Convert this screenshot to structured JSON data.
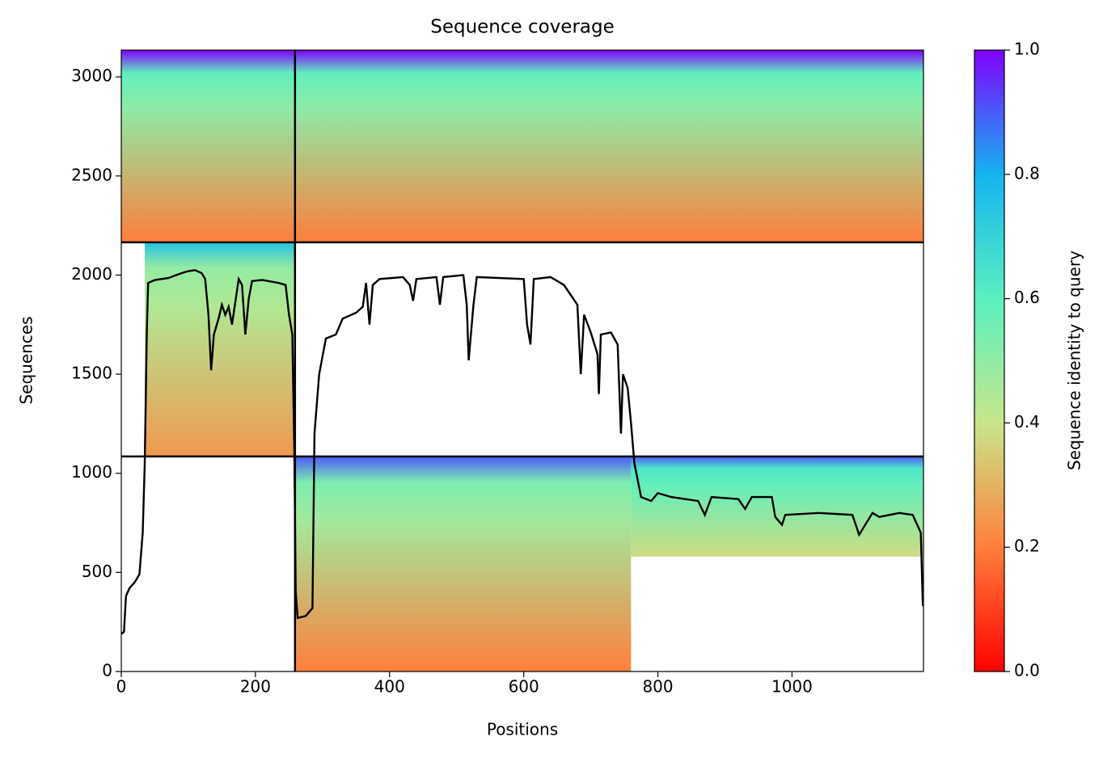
{
  "chart_data": {
    "type": "coverage",
    "title": "Sequence coverage",
    "xlabel": "Positions",
    "ylabel": "Sequences",
    "colorbar_label": "Sequence identity to query",
    "xlim": [
      0,
      1196
    ],
    "ylim": [
      0,
      3135
    ],
    "xticks": [
      0,
      200,
      400,
      600,
      800,
      1000
    ],
    "yticks": [
      0,
      500,
      1000,
      1500,
      2000,
      2500,
      3000
    ],
    "clim": [
      0,
      1
    ],
    "cticks": [
      {
        "value": 0,
        "label": "0.0"
      },
      {
        "value": 0.2,
        "label": "0.2"
      },
      {
        "value": 0.4,
        "label": "0.4"
      },
      {
        "value": 0.6,
        "label": "0.6"
      },
      {
        "value": 0.8,
        "label": "0.8"
      },
      {
        "value": 1,
        "label": "1.0"
      }
    ],
    "blocks": [
      {
        "x": [
          0,
          259
        ],
        "y": [
          2165,
          3135
        ],
        "identity": [
          0.2,
          1
        ]
      },
      {
        "x": [
          35,
          259
        ],
        "y": [
          1085,
          2165
        ],
        "identity": [
          0.25,
          0.75
        ]
      },
      {
        "x": [
          259,
          1196
        ],
        "y": [
          2165,
          3135
        ],
        "identity": [
          0.2,
          1
        ]
      },
      {
        "x": [
          259,
          760
        ],
        "y": [
          0,
          1085
        ],
        "identity": [
          0.2,
          0.9
        ]
      },
      {
        "x": [
          760,
          1196
        ],
        "y": [
          580,
          1085
        ],
        "identity": [
          0.38,
          0.9
        ]
      }
    ],
    "separators_x": [
      259
    ],
    "separators_y": [
      1085,
      2165
    ],
    "line_color": "#000000",
    "x": [
      0,
      4,
      7,
      12,
      20,
      27,
      32,
      35,
      38,
      40,
      50,
      70,
      90,
      100,
      110,
      120,
      125,
      130,
      134,
      138,
      145,
      150,
      155,
      160,
      165,
      175,
      180,
      185,
      190,
      195,
      210,
      235,
      245,
      250,
      255,
      258,
      260,
      263,
      275,
      285,
      288,
      295,
      305,
      320,
      330,
      350,
      360,
      365,
      370,
      375,
      385,
      420,
      430,
      435,
      440,
      470,
      475,
      480,
      510,
      515,
      518,
      525,
      530,
      600,
      605,
      610,
      615,
      640,
      660,
      680,
      685,
      690,
      700,
      710,
      712,
      715,
      730,
      740,
      745,
      748,
      755,
      760,
      765,
      775,
      790,
      800,
      820,
      860,
      870,
      880,
      920,
      930,
      940,
      970,
      975,
      985,
      990,
      1040,
      1090,
      1100,
      1120,
      1130,
      1160,
      1180,
      1192,
      1195
    ],
    "values": [
      190,
      200,
      380,
      420,
      450,
      490,
      700,
      1050,
      1700,
      1960,
      1975,
      1985,
      2010,
      2020,
      2025,
      2010,
      1980,
      1800,
      1520,
      1700,
      1780,
      1850,
      1800,
      1840,
      1750,
      1980,
      1950,
      1700,
      1880,
      1970,
      1975,
      1960,
      1950,
      1800,
      1700,
      1100,
      400,
      270,
      280,
      320,
      1200,
      1500,
      1680,
      1700,
      1780,
      1810,
      1840,
      1960,
      1750,
      1950,
      1980,
      1990,
      1950,
      1870,
      1980,
      1990,
      1850,
      1990,
      2000,
      1850,
      1570,
      1850,
      1990,
      1980,
      1750,
      1650,
      1980,
      1990,
      1950,
      1850,
      1500,
      1800,
      1710,
      1600,
      1400,
      1700,
      1710,
      1650,
      1200,
      1500,
      1430,
      1250,
      1050,
      880,
      860,
      900,
      880,
      860,
      790,
      880,
      870,
      820,
      880,
      880,
      780,
      740,
      790,
      800,
      790,
      690,
      800,
      780,
      800,
      790,
      700,
      330
    ]
  }
}
